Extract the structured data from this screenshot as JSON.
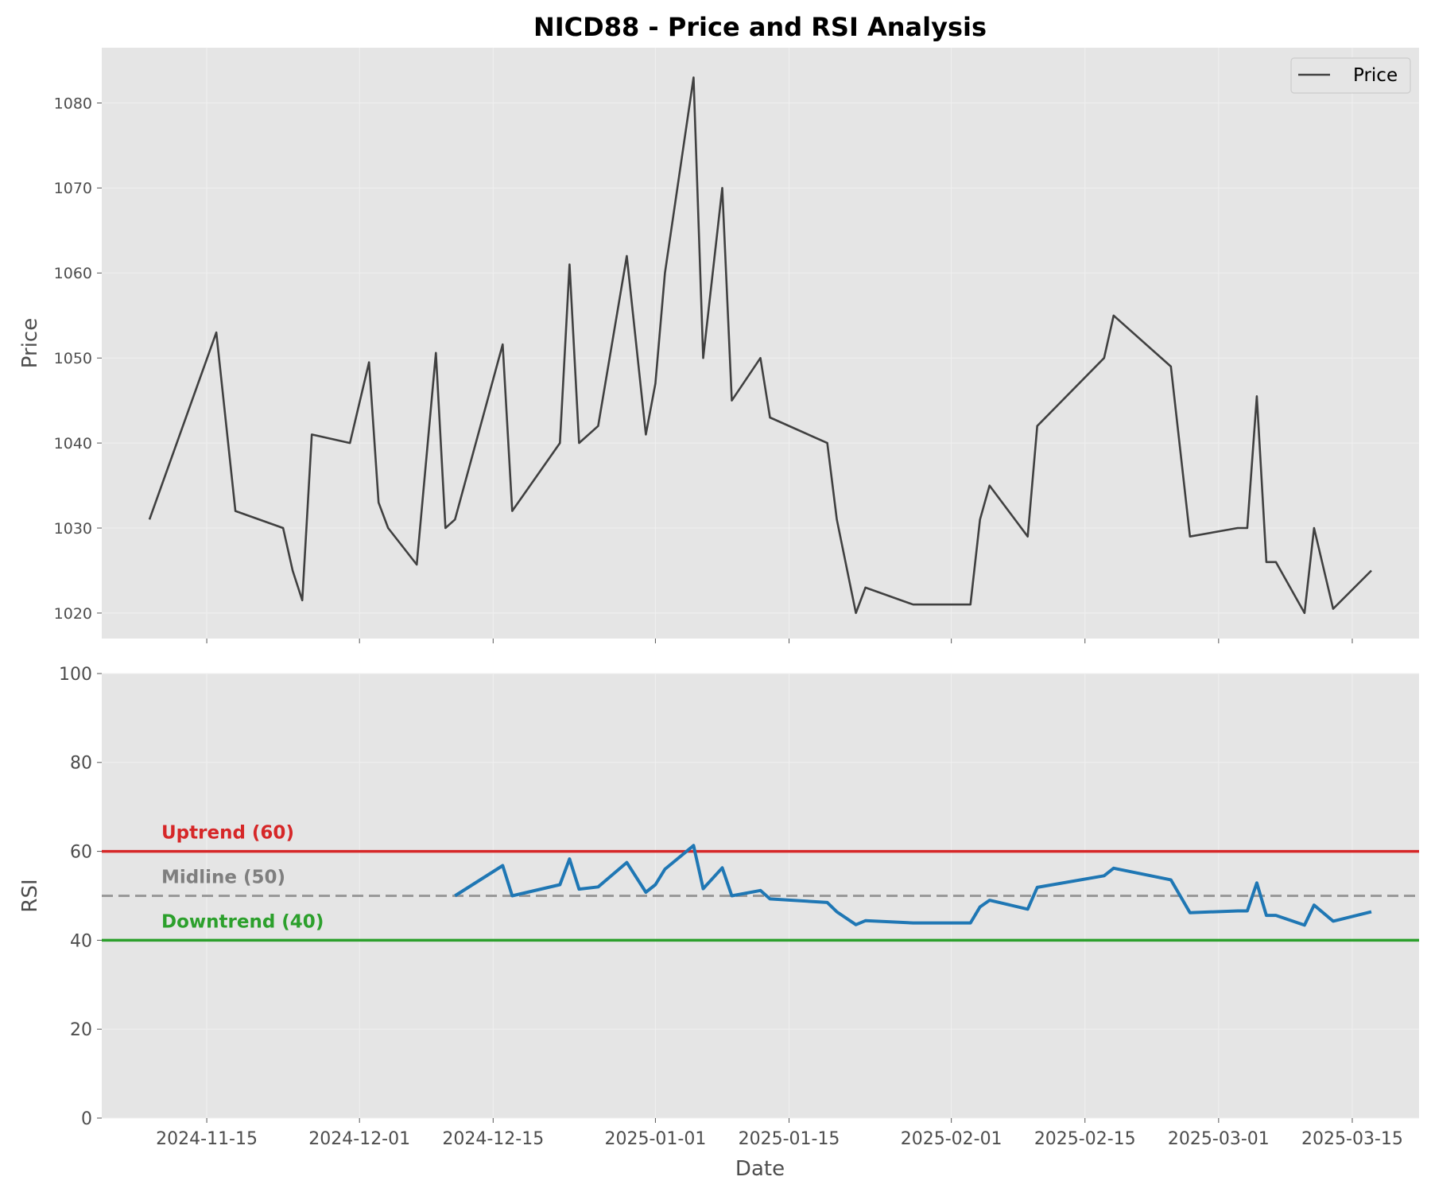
{
  "chart_data": {
    "title": "NICD88 - Price and RSI Analysis",
    "xlabel": "Date",
    "panels": [
      {
        "name": "price",
        "type": "line",
        "ylabel": "Price",
        "ylim": [
          1017,
          1086.5
        ],
        "yticks": [
          1020,
          1030,
          1040,
          1050,
          1060,
          1070,
          1080
        ],
        "legend": {
          "placement": "top-right",
          "entries": [
            "Price"
          ]
        },
        "series": [
          {
            "name": "Price",
            "color": "#404040",
            "x": [
              "2024-11-09",
              "2024-11-16",
              "2024-11-18",
              "2024-11-23",
              "2024-11-24",
              "2024-11-25",
              "2024-11-26",
              "2024-11-30",
              "2024-12-02",
              "2024-12-03",
              "2024-12-04",
              "2024-12-07",
              "2024-12-09",
              "2024-12-10",
              "2024-12-11",
              "2024-12-16",
              "2024-12-17",
              "2024-12-22",
              "2024-12-23",
              "2024-12-24",
              "2024-12-26",
              "2024-12-29",
              "2024-12-31",
              "2025-01-01",
              "2025-01-02",
              "2025-01-05",
              "2025-01-06",
              "2025-01-08",
              "2025-01-09",
              "2025-01-12",
              "2025-01-13",
              "2025-01-19",
              "2025-01-20",
              "2025-01-22",
              "2025-01-23",
              "2025-01-28",
              "2025-02-03",
              "2025-02-04",
              "2025-02-05",
              "2025-02-09",
              "2025-02-10",
              "2025-02-17",
              "2025-02-18",
              "2025-02-24",
              "2025-02-26",
              "2025-03-03",
              "2025-03-04",
              "2025-03-05",
              "2025-03-06",
              "2025-03-07",
              "2025-03-10",
              "2025-03-11",
              "2025-03-13",
              "2025-03-17"
            ],
            "values": [
              1031,
              1053,
              1032,
              1030,
              1025,
              1021.5,
              1041,
              1040,
              1049.5,
              1033,
              1030,
              1025.7,
              1050.6,
              1030,
              1031,
              1051.6,
              1032,
              1040,
              1061,
              1040,
              1042,
              1062,
              1041,
              1047,
              1060,
              1083,
              1050,
              1070,
              1045,
              1050,
              1043,
              1040,
              1031,
              1020,
              1023,
              1021,
              1021,
              1031,
              1035,
              1029,
              1042,
              1050,
              1055,
              1049,
              1029,
              1030,
              1030,
              1045.5,
              1026,
              1026,
              1020,
              1030,
              1020.5,
              1025
            ]
          }
        ]
      },
      {
        "name": "rsi",
        "type": "line",
        "ylabel": "RSI",
        "ylim": [
          0,
          100
        ],
        "yticks": [
          0,
          20,
          40,
          60,
          80,
          100
        ],
        "reference_lines": [
          {
            "label": "Uptrend (60)",
            "value": 60,
            "color": "#d62728",
            "style": "solid"
          },
          {
            "label": "Midline (50)",
            "value": 50,
            "color": "#999999",
            "style": "dashed"
          },
          {
            "label": "Downtrend (40)",
            "value": 40,
            "color": "#2ca02c",
            "style": "solid"
          }
        ],
        "series": [
          {
            "name": "RSI",
            "color": "#1f77b4",
            "x": [
              "2024-12-11",
              "2024-12-16",
              "2024-12-17",
              "2024-12-22",
              "2024-12-23",
              "2024-12-24",
              "2024-12-26",
              "2024-12-29",
              "2024-12-31",
              "2025-01-01",
              "2025-01-02",
              "2025-01-05",
              "2025-01-06",
              "2025-01-08",
              "2025-01-09",
              "2025-01-12",
              "2025-01-13",
              "2025-01-19",
              "2025-01-20",
              "2025-01-22",
              "2025-01-23",
              "2025-01-28",
              "2025-02-03",
              "2025-02-04",
              "2025-02-05",
              "2025-02-09",
              "2025-02-10",
              "2025-02-17",
              "2025-02-18",
              "2025-02-24",
              "2025-02-26",
              "2025-03-03",
              "2025-03-04",
              "2025-03-05",
              "2025-03-06",
              "2025-03-07",
              "2025-03-10",
              "2025-03-11",
              "2025-03-13",
              "2025-03-17"
            ],
            "values": [
              50,
              56.8,
              50,
              52.5,
              58.3,
              51.5,
              52,
              57.5,
              50.8,
              52.5,
              56,
              61.3,
              51.6,
              56.3,
              50,
              51.2,
              49.3,
              48.5,
              46.4,
              43.5,
              44.4,
              43.9,
              43.9,
              47.5,
              49,
              47,
              51.9,
              54.5,
              56.2,
              53.6,
              46.2,
              46.6,
              46.6,
              52.9,
              45.6,
              45.6,
              43.4,
              47.9,
              44.3,
              46.4
            ]
          }
        ]
      }
    ],
    "x_ticks": [
      "2024-11-15",
      "2024-12-01",
      "2024-12-15",
      "2025-01-01",
      "2025-01-15",
      "2025-02-01",
      "2025-02-15",
      "2025-03-01",
      "2025-03-15"
    ],
    "x_range": [
      "2024-11-04",
      "2025-03-22"
    ],
    "grid": true
  }
}
